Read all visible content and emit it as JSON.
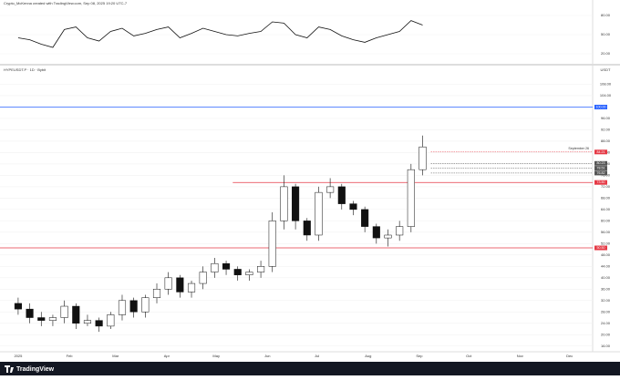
{
  "header": "Crypto_McKenna created with TradingView.com, Sep 08, 2025 19:20 UTC-7",
  "footer": "TradingView",
  "chart_data": [
    {
      "type": "line",
      "color": "#111111",
      "x": [
        0,
        7,
        14,
        21,
        28,
        35,
        42,
        49,
        56,
        63,
        70,
        77,
        84,
        91,
        98,
        105,
        112,
        119,
        126,
        133,
        140,
        147,
        154,
        161,
        168,
        175,
        182,
        189,
        196,
        203,
        210,
        217,
        224,
        231,
        238,
        245
      ],
      "values": [
        45,
        42,
        35,
        30,
        58,
        62,
        45,
        40,
        55,
        60,
        48,
        52,
        58,
        62,
        45,
        52,
        60,
        55,
        50,
        48,
        52,
        55,
        70,
        68,
        50,
        45,
        62,
        58,
        48,
        42,
        38,
        45,
        50,
        55,
        72,
        65
      ],
      "xlim": [
        -11,
        348
      ],
      "ylim": [
        10,
        90
      ],
      "yticks": [
        {
          "value": 20,
          "label": "20.00"
        },
        {
          "value": 50,
          "label": "50.00"
        },
        {
          "value": 80,
          "label": "80.00"
        }
      ]
    },
    {
      "type": "candlestick",
      "title": "HYPEUSDT.P · 1D · Bybit",
      "unit": "USDT",
      "up_color": "#ffffff",
      "down_color": "#111111",
      "x": [
        0,
        7,
        14,
        21,
        28,
        35,
        42,
        49,
        56,
        63,
        70,
        77,
        84,
        91,
        98,
        105,
        112,
        119,
        126,
        133,
        140,
        147,
        154,
        161,
        168,
        175,
        182,
        189,
        196,
        203,
        210,
        217,
        224,
        231,
        238,
        245
      ],
      "open": [
        31,
        29,
        26,
        25,
        26,
        30,
        24,
        25,
        23,
        27,
        32,
        28,
        33,
        36,
        40,
        35,
        38,
        42,
        45,
        43,
        41,
        42,
        44,
        60,
        72,
        60,
        55,
        70,
        72,
        66,
        64,
        58,
        54,
        55,
        58,
        78
      ],
      "high": [
        33,
        31,
        28,
        27,
        32,
        31,
        27,
        26,
        28,
        34,
        33,
        34,
        38,
        42,
        41,
        39,
        44,
        47,
        46,
        44,
        43,
        46,
        63,
        76,
        73,
        61,
        72,
        75,
        73,
        67,
        65,
        59,
        57,
        60,
        80,
        90
      ],
      "low": [
        27,
        24,
        23,
        23,
        24,
        22,
        23,
        21,
        22,
        25,
        26,
        26,
        31,
        34,
        33,
        33,
        36,
        40,
        41,
        39,
        39,
        40,
        42,
        57,
        57,
        53,
        53,
        68,
        64,
        62,
        56,
        52,
        51,
        53,
        56,
        76
      ],
      "close": [
        29,
        26,
        25,
        26,
        30,
        24,
        25,
        23,
        27,
        32,
        28,
        33,
        36,
        40,
        35,
        38,
        42,
        45,
        43,
        41,
        42,
        44,
        60,
        72,
        60,
        55,
        70,
        72,
        66,
        64,
        58,
        54,
        55,
        58,
        78,
        86
      ],
      "xlim": [
        -11,
        348
      ],
      "ylim": [
        14,
        112
      ],
      "xticks": [
        {
          "value": 0,
          "label": "2025"
        },
        {
          "value": 31,
          "label": "Feb"
        },
        {
          "value": 59,
          "label": "Mar"
        },
        {
          "value": 90,
          "label": "Apr"
        },
        {
          "value": 120,
          "label": "May"
        },
        {
          "value": 151,
          "label": "Jun"
        },
        {
          "value": 181,
          "label": "Jul"
        },
        {
          "value": 212,
          "label": "Aug"
        },
        {
          "value": 243,
          "label": "Sep"
        },
        {
          "value": 273,
          "label": "Oct"
        },
        {
          "value": 304,
          "label": "Nov"
        },
        {
          "value": 334,
          "label": "Dec"
        }
      ],
      "yticks": [
        {
          "value": 16,
          "label": "16.00"
        },
        {
          "value": 20,
          "label": "20.00"
        },
        {
          "value": 24,
          "label": "24.00"
        },
        {
          "value": 28,
          "label": "28.00"
        },
        {
          "value": 32,
          "label": "32.00"
        },
        {
          "value": 36,
          "label": "36.00"
        },
        {
          "value": 40,
          "label": "40.00"
        },
        {
          "value": 44,
          "label": "44.00"
        },
        {
          "value": 48,
          "label": "48.00"
        },
        {
          "value": 52,
          "label": "52.00"
        },
        {
          "value": 56,
          "label": "56.00"
        },
        {
          "value": 60,
          "label": "60.00"
        },
        {
          "value": 64,
          "label": "64.00"
        },
        {
          "value": 68,
          "label": "68.00"
        },
        {
          "value": 72,
          "label": "72.00"
        },
        {
          "value": 76,
          "label": "76.00"
        },
        {
          "value": 80,
          "label": "80.00"
        },
        {
          "value": 84,
          "label": "84.00"
        },
        {
          "value": 88,
          "label": "88.00"
        },
        {
          "value": 92,
          "label": "92.00"
        },
        {
          "value": 96,
          "label": "96.00"
        },
        {
          "value": 104,
          "label": "104.00"
        },
        {
          "value": 108,
          "label": "108.00"
        }
      ],
      "hlines": [
        {
          "value": 100,
          "label": "100.00",
          "color": "#2962ff",
          "x_start": -11,
          "style": "solid"
        },
        {
          "value": 73.5,
          "label": "73.50",
          "color": "#e53945",
          "x_start": 130,
          "style": "solid"
        },
        {
          "value": 50.5,
          "label": "50.50",
          "color": "#e53945",
          "x_start": -11,
          "style": "solid"
        },
        {
          "value": 84.2,
          "label": "84.21",
          "color": "#e53945",
          "x_start": 250,
          "style": "dashed"
        },
        {
          "value": 80.2,
          "label": "80.23",
          "color": "#555555",
          "x_start": 250,
          "style": "dashed"
        },
        {
          "value": 78.5,
          "label": "78.51",
          "color": "#555555",
          "x_start": 250,
          "style": "dashed"
        },
        {
          "value": 76.8,
          "label": "76.82",
          "color": "#555555",
          "x_start": 250,
          "style": "dashed"
        }
      ],
      "annotation": "September 26"
    }
  ]
}
